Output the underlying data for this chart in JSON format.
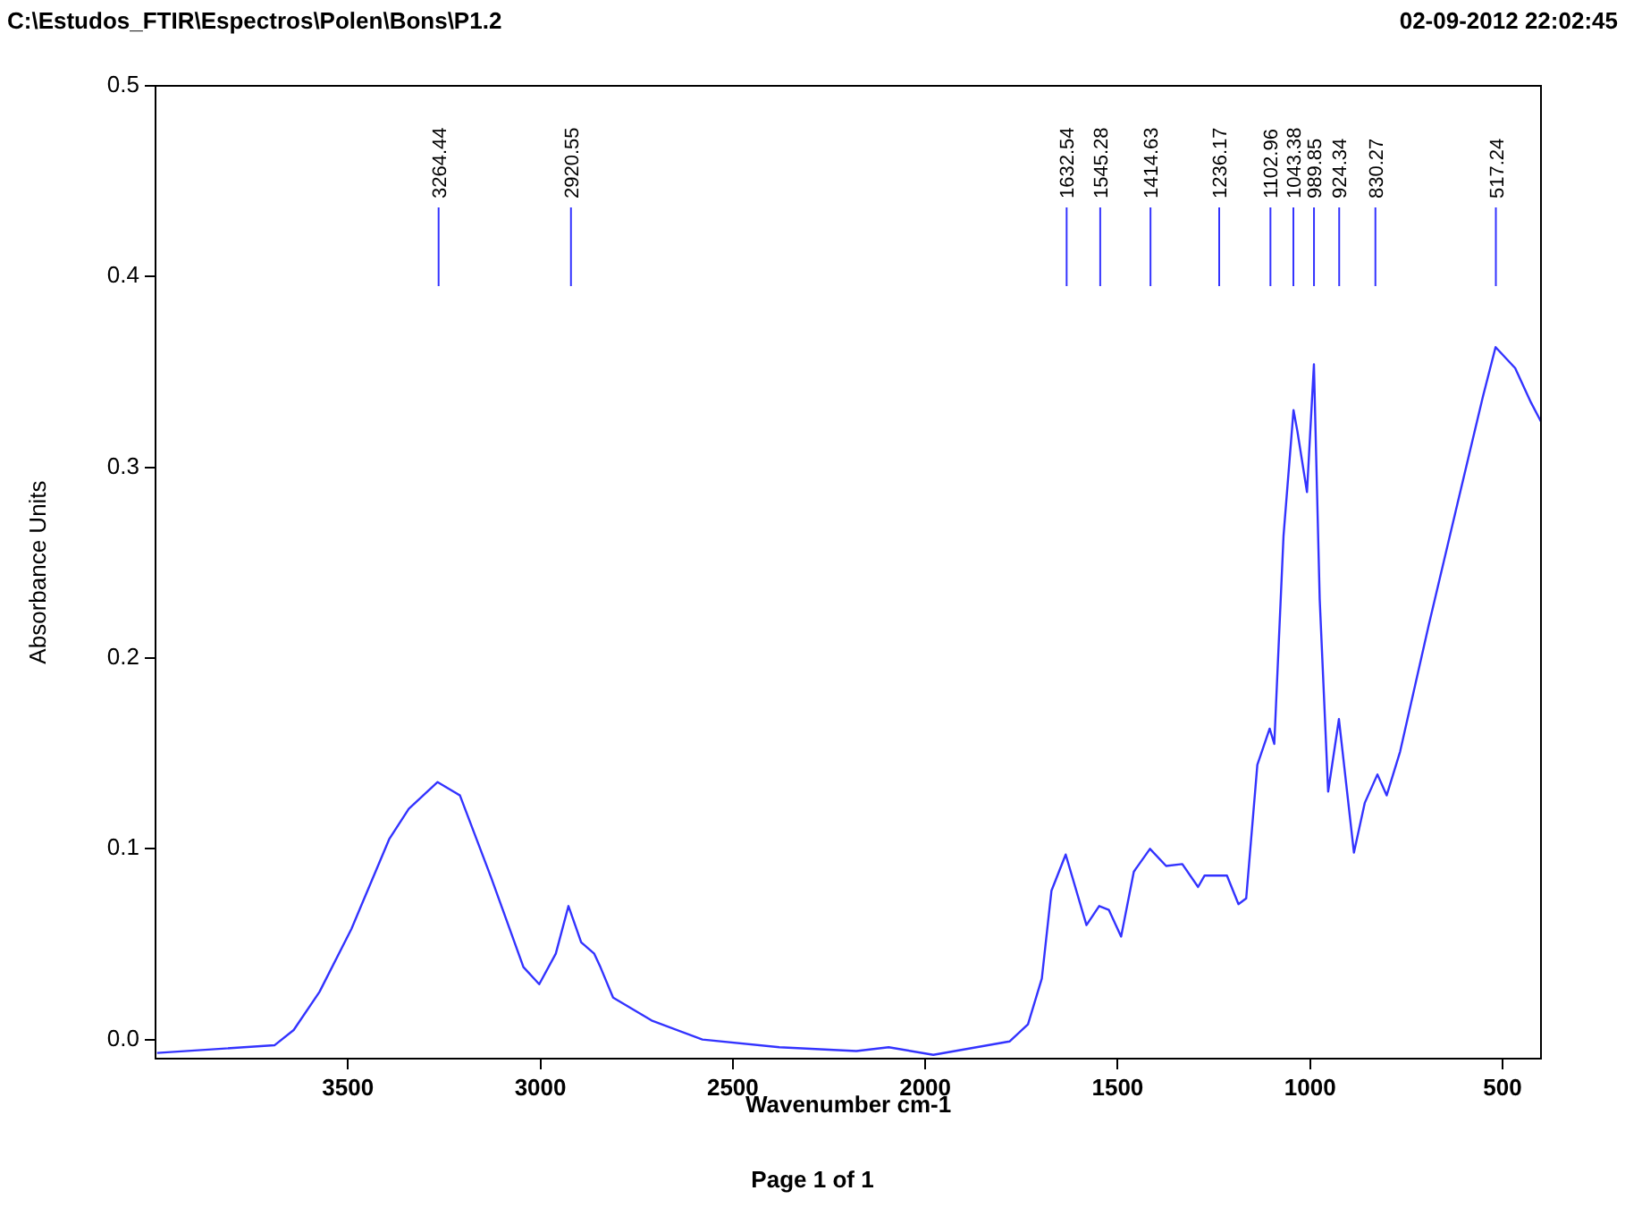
{
  "chart_data": {
    "type": "line",
    "title": "C:\\Estudos_FTIR\\Espectros\\Polen\\Bons\\P1.2",
    "xlabel": "Wavenumber cm-1",
    "ylabel": "Absorbance Units",
    "annotations": [
      "02-09-2012  22:02:45",
      "Page 1 of 1"
    ],
    "ref_lines": [
      {
        "axis": "x",
        "value": 3264.44,
        "label": "3264.44"
      },
      {
        "axis": "x",
        "value": 2920.55,
        "label": "2920.55"
      },
      {
        "axis": "x",
        "value": 1632.54,
        "label": "1632.54"
      },
      {
        "axis": "x",
        "value": 1545.28,
        "label": "1545.28"
      },
      {
        "axis": "x",
        "value": 1414.63,
        "label": "1414.63"
      },
      {
        "axis": "x",
        "value": 1236.17,
        "label": "1236.17"
      },
      {
        "axis": "x",
        "value": 1102.96,
        "label": "1102.96"
      },
      {
        "axis": "x",
        "value": 1043.38,
        "label": "1043.38"
      },
      {
        "axis": "x",
        "value": 989.85,
        "label": "989.85"
      },
      {
        "axis": "x",
        "value": 924.34,
        "label": "924.34"
      },
      {
        "axis": "x",
        "value": 830.27,
        "label": "830.27"
      },
      {
        "axis": "x",
        "value": 517.24,
        "label": "517.24"
      }
    ],
    "xlim": [
      4000,
      400
    ],
    "xticks": [
      3500,
      3000,
      2500,
      2000,
      1500,
      1000,
      500
    ],
    "ylim": [
      -0.01,
      0.5
    ],
    "yticks": [
      {
        "value": 0,
        "label": "0.0"
      },
      0.1,
      0.2,
      0.3,
      0.4,
      0.5
    ],
    "grid": false,
    "legend": false,
    "series": [
      {
        "color": "#3333ff",
        "x": [
          3996,
          3691,
          3641,
          3574,
          3491,
          3393,
          3342,
          3267,
          3209,
          3128,
          3044,
          3003,
          2960,
          2927,
          2894,
          2860,
          2844,
          2811,
          2711,
          2579,
          2379,
          2179,
          2095,
          1979,
          1781,
          1733,
          1697,
          1672,
          1635,
          1581,
          1548,
          1523,
          1491,
          1458,
          1416,
          1374,
          1332,
          1291,
          1274,
          1216,
          1186,
          1166,
          1137,
          1105,
          1093,
          1069,
          1043,
          1033,
          1008,
          990,
          975,
          953,
          925,
          886,
          858,
          825,
          801,
          766,
          692,
          617,
          551,
          518,
          467,
          426,
          400
        ],
        "values": [
          -0.007,
          -0.003,
          0.005,
          0.025,
          0.058,
          0.105,
          0.121,
          0.135,
          0.128,
          0.085,
          0.038,
          0.029,
          0.045,
          0.07,
          0.051,
          0.045,
          0.038,
          0.022,
          0.01,
          0.0,
          -0.004,
          -0.006,
          -0.004,
          -0.008,
          -0.001,
          0.008,
          0.032,
          0.078,
          0.097,
          0.06,
          0.07,
          0.068,
          0.054,
          0.088,
          0.1,
          0.091,
          0.092,
          0.08,
          0.086,
          0.086,
          0.071,
          0.074,
          0.144,
          0.163,
          0.155,
          0.264,
          0.33,
          0.319,
          0.287,
          0.354,
          0.231,
          0.13,
          0.168,
          0.098,
          0.124,
          0.139,
          0.128,
          0.151,
          0.217,
          0.281,
          0.337,
          0.363,
          0.352,
          0.334,
          0.324
        ]
      }
    ]
  }
}
